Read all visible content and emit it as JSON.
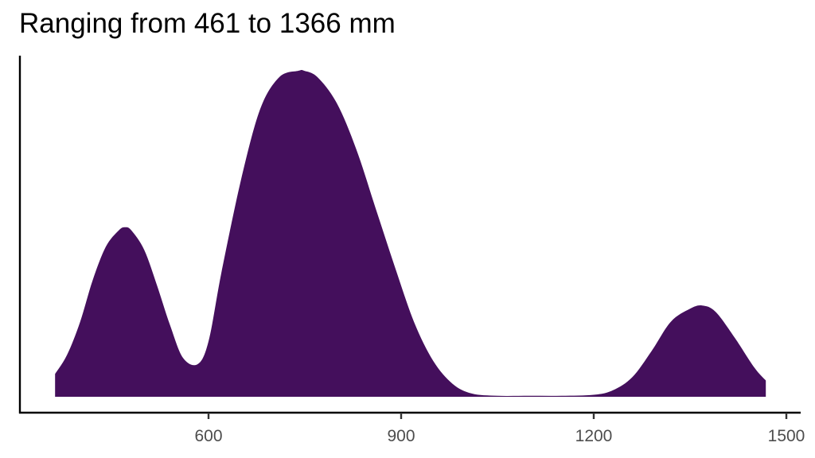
{
  "chart_data": {
    "type": "area",
    "subtype": "density",
    "title": "Ranging from 461 to 1366 mm",
    "xlabel": "",
    "ylabel": "",
    "xlim": [
      347,
      1510
    ],
    "x_ticks": [
      600,
      900,
      1200,
      1500
    ],
    "x_tick_labels": [
      "600",
      "900",
      "1200",
      "1500"
    ],
    "y_ticks": [],
    "grid": false,
    "legend": "none",
    "fill_color": "#440f5c",
    "data_min": 461,
    "data_max": 1366,
    "density_curve": {
      "x": [
        361,
        380,
        400,
        420,
        440,
        460,
        470,
        480,
        500,
        520,
        540,
        560,
        583,
        600,
        620,
        650,
        680,
        710,
        740,
        749,
        770,
        800,
        830,
        860,
        890,
        920,
        950,
        980,
        1010,
        1050,
        1100,
        1150,
        1200,
        1230,
        1260,
        1290,
        1320,
        1350,
        1369,
        1390,
        1420,
        1450,
        1468
      ],
      "relative_height": [
        0.07,
        0.13,
        0.23,
        0.36,
        0.46,
        0.51,
        0.52,
        0.51,
        0.45,
        0.34,
        0.22,
        0.12,
        0.1,
        0.17,
        0.38,
        0.66,
        0.88,
        0.98,
        1.0,
        1.0,
        0.98,
        0.9,
        0.76,
        0.58,
        0.4,
        0.23,
        0.11,
        0.04,
        0.01,
        0.003,
        0.003,
        0.003,
        0.006,
        0.02,
        0.06,
        0.14,
        0.23,
        0.27,
        0.28,
        0.26,
        0.18,
        0.09,
        0.05
      ]
    },
    "peaks": [
      {
        "x": 470,
        "relative_height": 0.52
      },
      {
        "x": 749,
        "relative_height": 1.0
      },
      {
        "x": 1369,
        "relative_height": 0.28
      }
    ]
  },
  "axes": {
    "x_tick_labels": [
      "600",
      "900",
      "1200",
      "1500"
    ]
  }
}
